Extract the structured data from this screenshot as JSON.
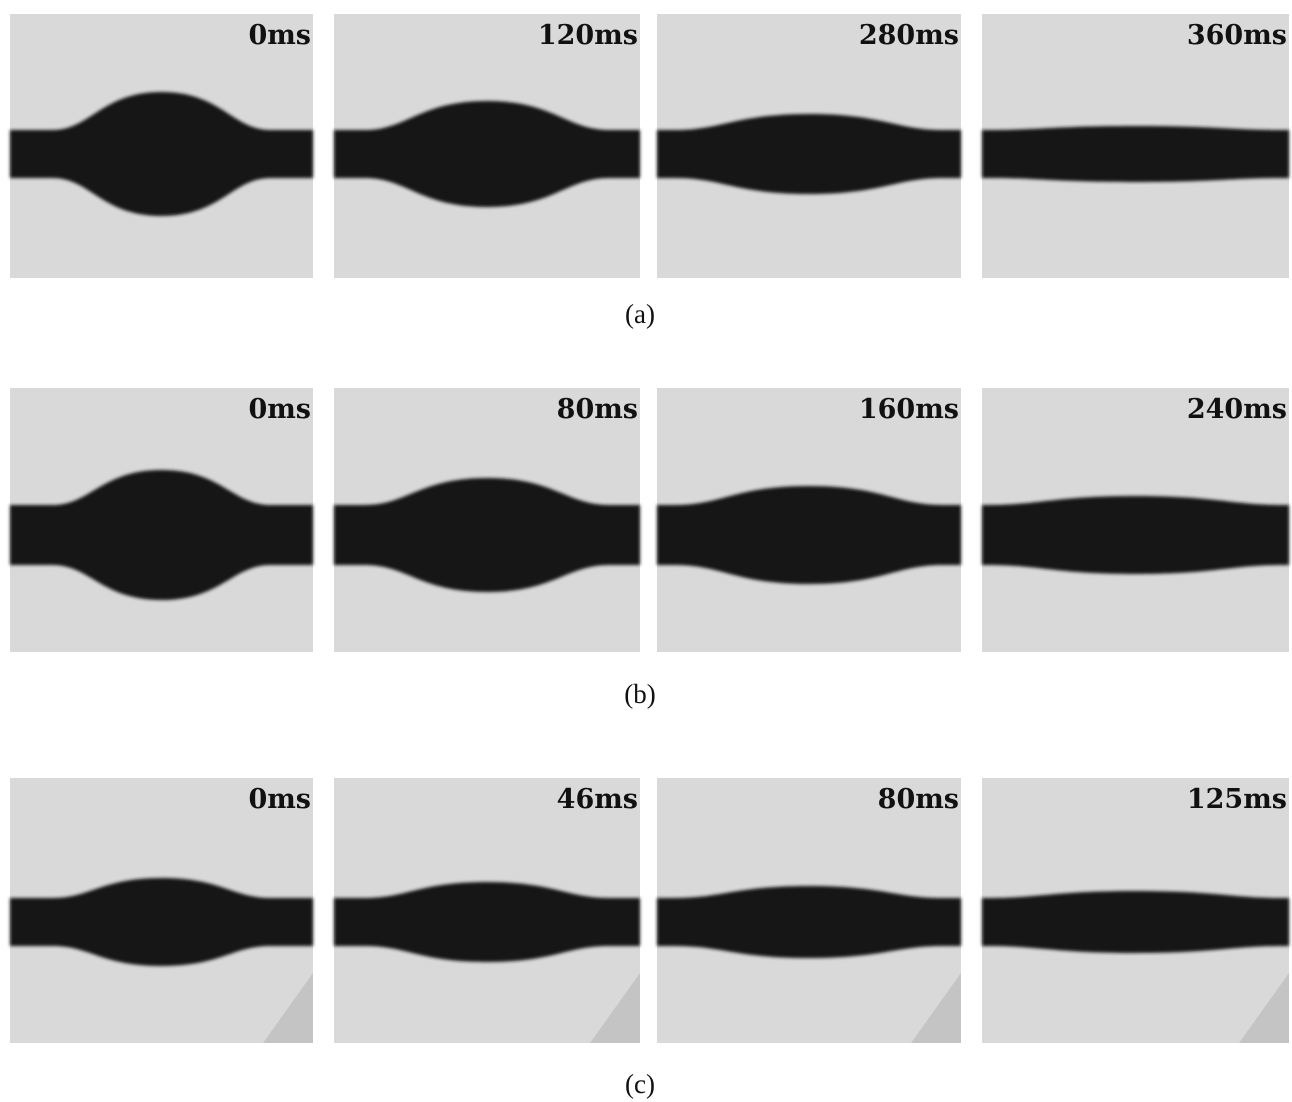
{
  "rows": [
    {
      "caption": "(a)",
      "panels": [
        {
          "label": "0ms"
        },
        {
          "label": "120ms"
        },
        {
          "label": "280ms"
        },
        {
          "label": "360ms"
        }
      ]
    },
    {
      "caption": "(b)",
      "panels": [
        {
          "label": "0ms"
        },
        {
          "label": "80ms"
        },
        {
          "label": "160ms"
        },
        {
          "label": "240ms"
        }
      ]
    },
    {
      "caption": "(c)",
      "panels": [
        {
          "label": "0ms"
        },
        {
          "label": "46ms"
        },
        {
          "label": "80ms"
        },
        {
          "label": "125ms"
        }
      ]
    }
  ]
}
